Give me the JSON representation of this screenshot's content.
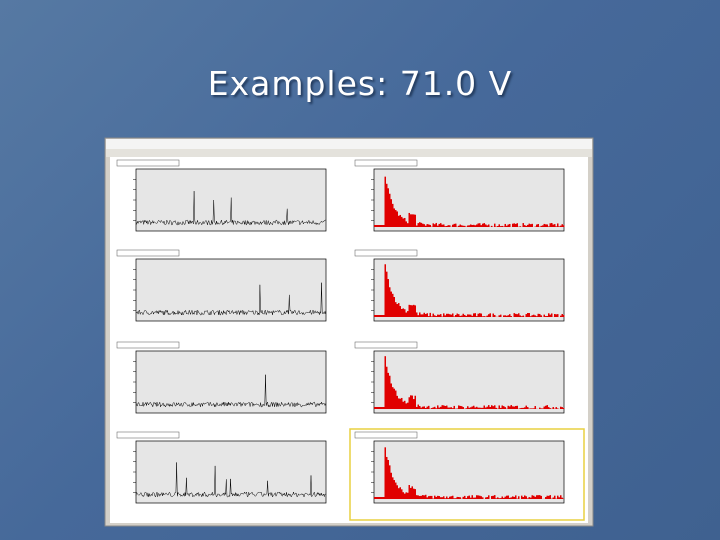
{
  "slide": {
    "title": "Examples: 71.0 V"
  }
}
